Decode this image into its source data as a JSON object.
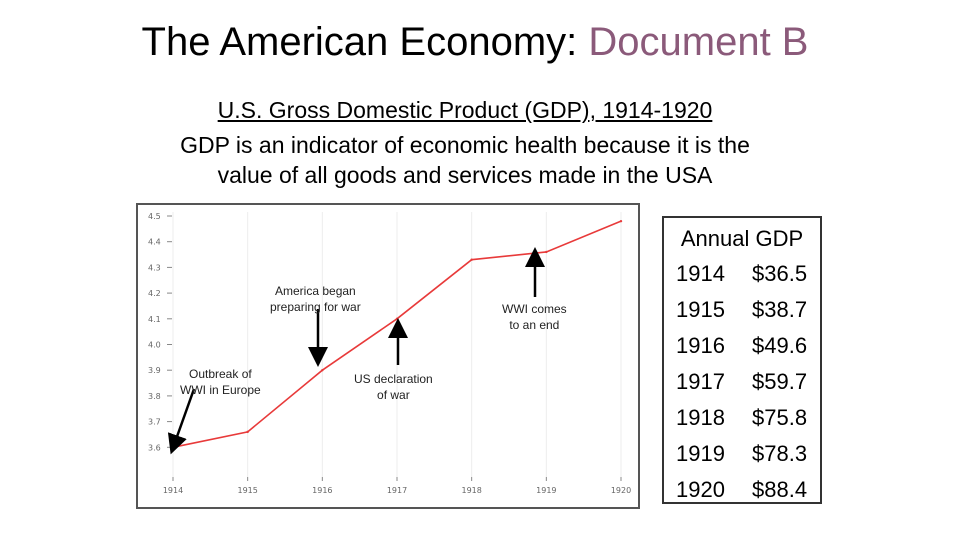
{
  "slide": {
    "title_main": "The American Economy: ",
    "title_accent": "Document B",
    "subtitle": "U.S. Gross Domestic Product (GDP), 1914-1920",
    "description_lines": [
      "GDP is an indicator of economic health because it is the",
      "value of all goods and services made in the USA"
    ],
    "accent_color": "#8b5a7a"
  },
  "chart_data": {
    "type": "line",
    "x": [
      1914,
      1915,
      1916,
      1917,
      1918,
      1919,
      1920
    ],
    "y": [
      3.6,
      3.66,
      3.9,
      4.1,
      4.33,
      4.36,
      4.48
    ],
    "xlim": [
      1914,
      1920
    ],
    "ylim": [
      3.5,
      4.5
    ],
    "x_ticks": [
      "1914",
      "1915",
      "1916",
      "1917",
      "1918",
      "1919",
      "1920"
    ],
    "y_ticks": [
      "4.5",
      "4.4",
      "4.3",
      "4.2",
      "4.1",
      "4.0",
      "3.9",
      "3.8",
      "3.7",
      "3.6"
    ],
    "grid": "vertical",
    "line_color": "#e83a3a",
    "annotations": [
      {
        "text": "Outbreak of\nWWI in Europe"
      },
      {
        "text": "America began\npreparing for war"
      },
      {
        "text": "US declaration\nof war"
      },
      {
        "text": "WWI comes\nto an end"
      }
    ]
  },
  "table": {
    "title": "Annual GDP",
    "rows": [
      {
        "year": "1914",
        "value": "$36.5"
      },
      {
        "year": "1915",
        "value": "$38.7"
      },
      {
        "year": "1916",
        "value": "$49.6"
      },
      {
        "year": "1917",
        "value": "$59.7"
      },
      {
        "year": "1918",
        "value": "$75.8"
      },
      {
        "year": "1919",
        "value": "$78.3"
      },
      {
        "year": "1920",
        "value": "$88.4"
      }
    ]
  }
}
